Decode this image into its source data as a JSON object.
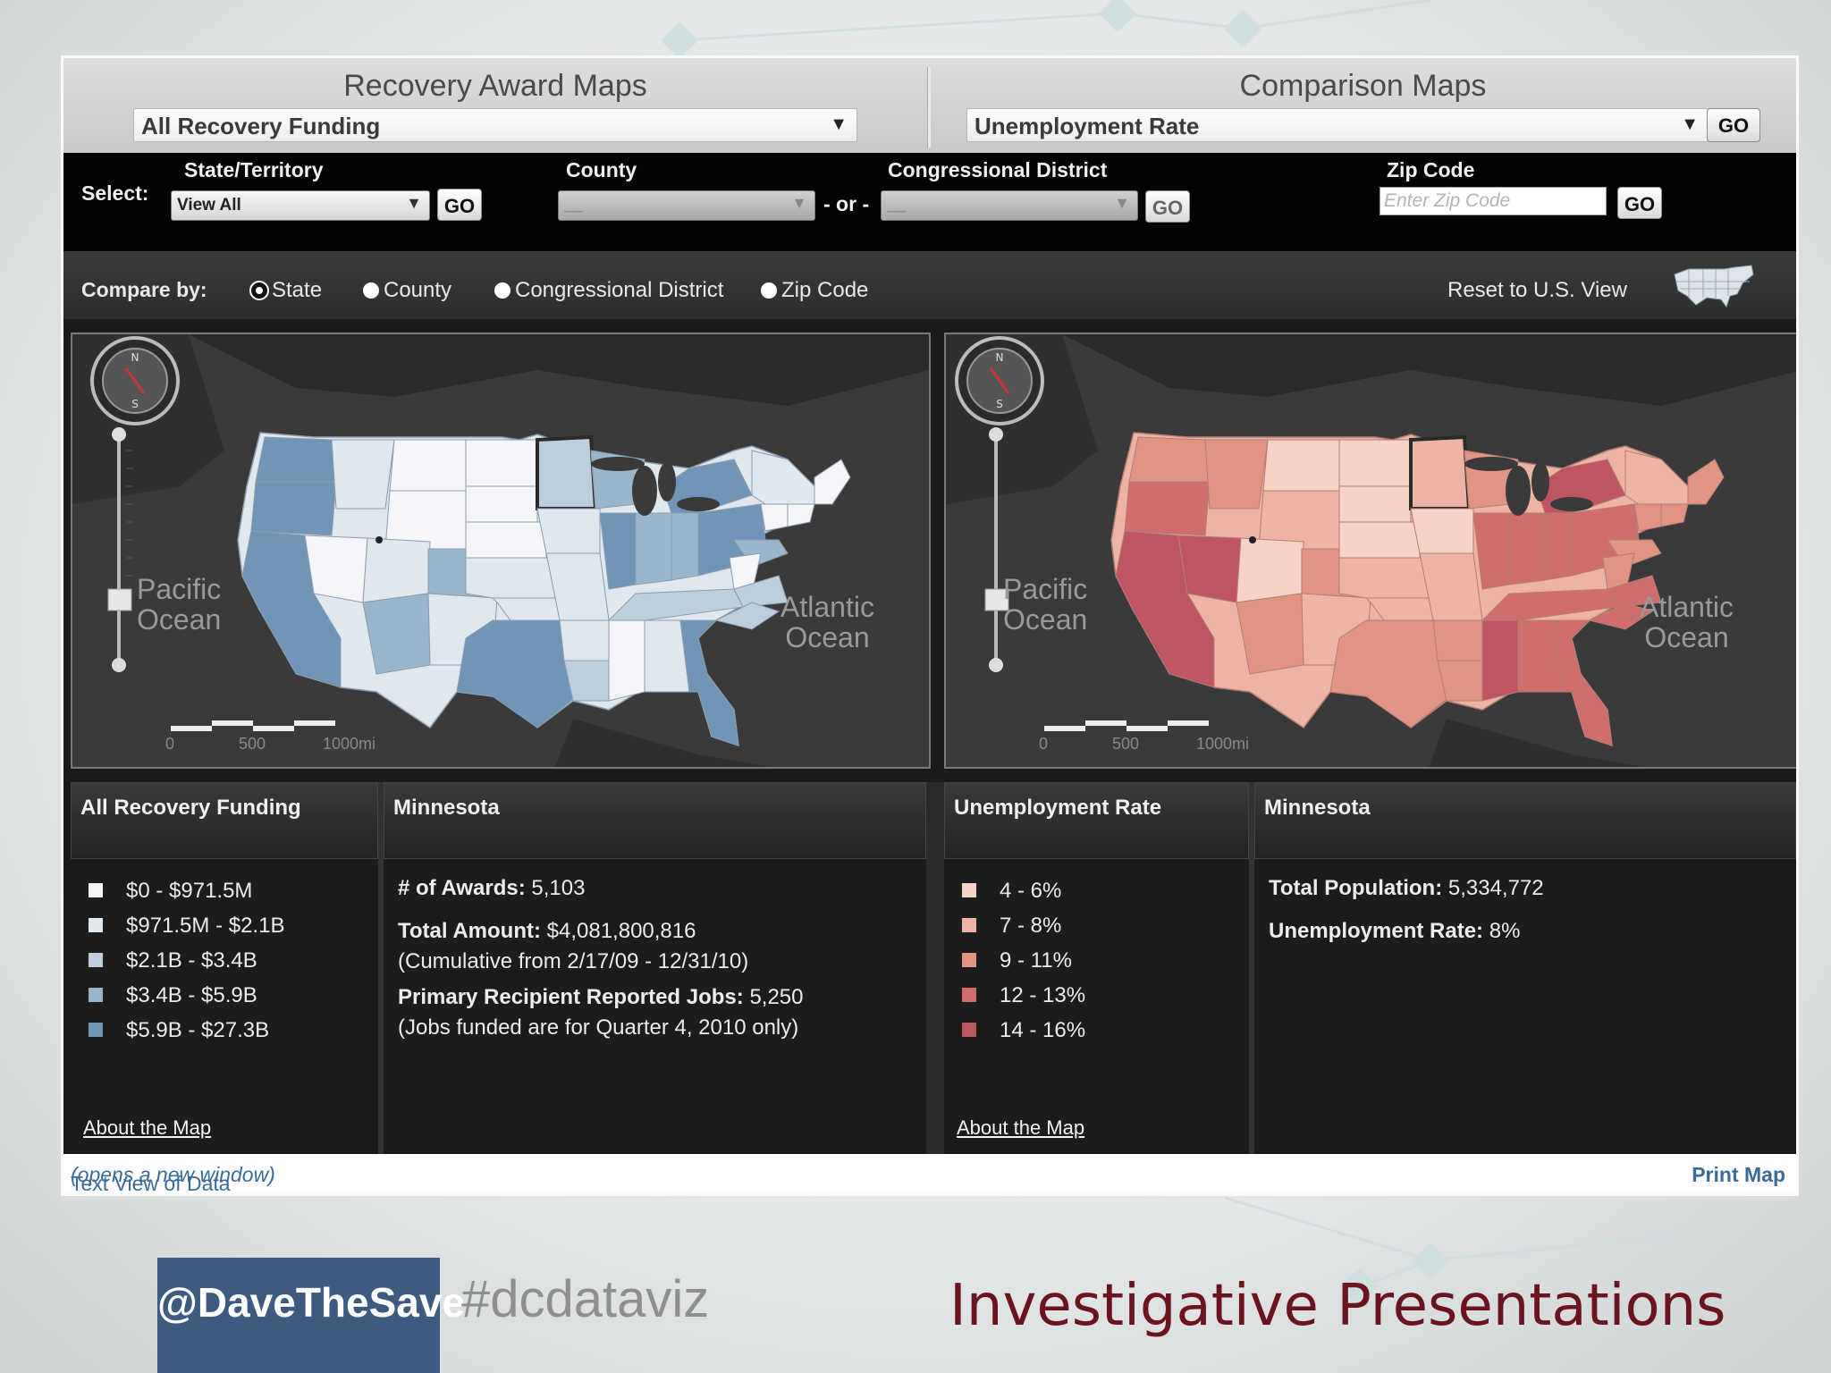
{
  "header": {
    "left_title": "Recovery Award Maps",
    "left_select": "All Recovery Funding",
    "right_title": "Comparison Maps",
    "right_select": "Unemployment Rate",
    "go_label": "GO"
  },
  "select_bar": {
    "select_label": "Select:",
    "state_label": "State/Territory",
    "state_value": "View All",
    "county_label": "County",
    "county_value": "__",
    "or_label": "- or -",
    "district_label": "Congressional District",
    "district_value": "__",
    "zip_label": "Zip Code",
    "zip_placeholder": "Enter Zip Code",
    "go_label": "GO"
  },
  "compare_bar": {
    "label": "Compare by:",
    "options": [
      "State",
      "County",
      "Congressional District",
      "Zip Code"
    ],
    "selected": "State",
    "reset_label": "Reset to U.S. View"
  },
  "maps": {
    "pacific_line1": "Pacific",
    "pacific_line2": "Ocean",
    "atlantic_line1": "Atlantic",
    "atlantic_line2": "Ocean",
    "scale_ticks": [
      "0",
      "500",
      "1000mi"
    ]
  },
  "left_legend": {
    "title": "All Recovery Funding",
    "items": [
      {
        "label": "$0 - $971.5M",
        "color": "#f3f5f8"
      },
      {
        "label": "$971.5M - $2.1B",
        "color": "#dfe7ef"
      },
      {
        "label": "$2.1B - $3.4B",
        "color": "#bdcfdf"
      },
      {
        "label": "$3.4B - $5.9B",
        "color": "#9ab6cd"
      },
      {
        "label": "$5.9B - $27.3B",
        "color": "#6f96b8"
      }
    ],
    "about": "About the Map"
  },
  "left_info": {
    "title": "Minnesota",
    "awards_label": "# of Awards:",
    "awards_value": "5,103",
    "amount_label": "Total Amount:",
    "amount_value": "$4,081,800,816",
    "amount_note": "(Cumulative from 2/17/09 - 12/31/10)",
    "jobs_label": "Primary Recipient Reported Jobs:",
    "jobs_value": "5,250",
    "jobs_note": "(Jobs funded are for Quarter 4, 2010 only)"
  },
  "right_legend": {
    "title": "Unemployment Rate",
    "items": [
      {
        "label": "4 - 6%",
        "color": "#f6d3c6"
      },
      {
        "label": "7 - 8%",
        "color": "#eeb4a3"
      },
      {
        "label": "9 - 11%",
        "color": "#e29483"
      },
      {
        "label": "12 - 13%",
        "color": "#d06e6e"
      },
      {
        "label": "14 - 16%",
        "color": "#bf5462"
      }
    ],
    "about": "About the Map"
  },
  "right_info": {
    "title": "Minnesota",
    "population_label": "Total Population:",
    "population_value": "5,334,772",
    "rate_label": "Unemployment Rate:",
    "rate_value": "8%"
  },
  "footer": {
    "text_view": "Text View of Data",
    "text_view_note": "(opens a new window)",
    "print": "Print Map"
  },
  "slide": {
    "handle": "@DaveTheSave",
    "hashtag": "#dcdataviz",
    "title": "Investigative Presentations"
  },
  "colors": {
    "footer_link": "#3c6b9a",
    "slide_title": "#6b1420",
    "handle_bg": "#3d5a80"
  }
}
